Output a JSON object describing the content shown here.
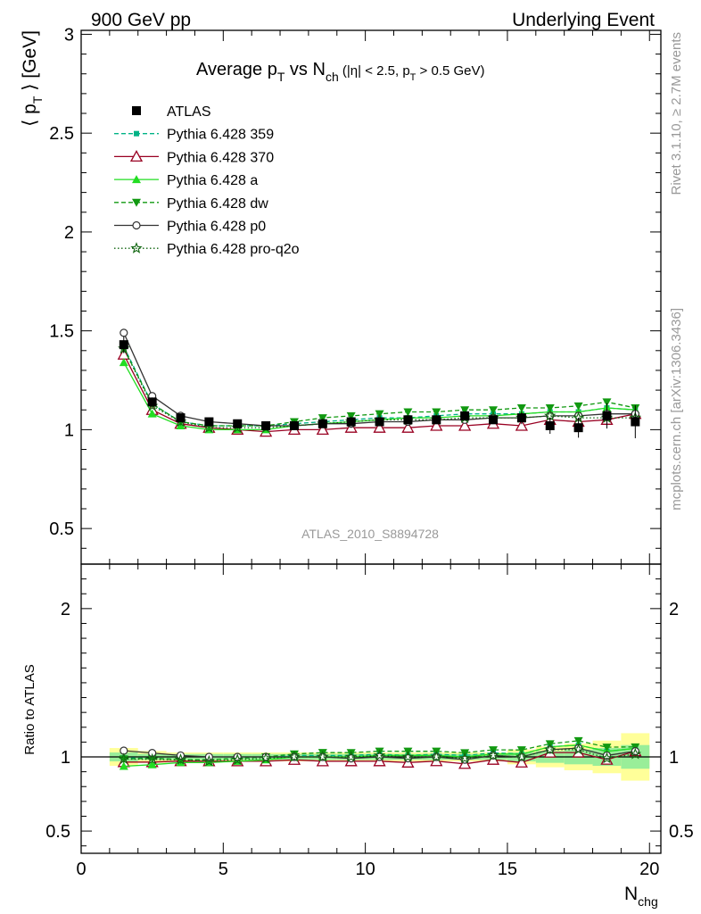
{
  "header": {
    "left": "900 GeV pp",
    "right": "Underlying Event"
  },
  "plot_title": {
    "main": "Average p",
    "main_sub": "T",
    "vs": " vs N",
    "vs_sub": "ch",
    "cuts_a": " (|η| < 2.5, p",
    "cuts_sub": "T",
    "cuts_b": " > 0.5 GeV)"
  },
  "analysis_id": "ATLAS_2010_S8894728",
  "side_labels": {
    "rivet": "Rivet 3.1.10, ≥ 2.7M events",
    "mcplots": "mcplots.cern.ch [arXiv:1306.3436]"
  },
  "axes": {
    "ylabel_main_a": "⟨ p",
    "ylabel_main_sub": "T",
    "ylabel_main_b": " ⟩ [GeV]",
    "ylabel_ratio": "Ratio to ATLAS",
    "xlabel": "N",
    "xlabel_sub": "chg",
    "main_yticks": [
      "0.5",
      "1",
      "1.5",
      "2",
      "2.5",
      "3"
    ],
    "ratio_yticks": [
      "0.5",
      "1",
      "2"
    ],
    "xticks": [
      "0",
      "5",
      "10",
      "15",
      "20"
    ]
  },
  "chart_data": {
    "type": "line",
    "xlim": [
      0,
      20.4
    ],
    "ylim_main": [
      0.32,
      3.02
    ],
    "ylim_ratio": [
      0.35,
      2.3
    ],
    "x": [
      1.5,
      2.5,
      3.5,
      4.5,
      5.5,
      6.5,
      7.5,
      8.5,
      9.5,
      10.5,
      11.5,
      12.5,
      13.5,
      14.5,
      15.5,
      16.5,
      17.5,
      18.5,
      19.5
    ],
    "data": {
      "name": "ATLAS",
      "values": [
        1.43,
        1.14,
        1.06,
        1.04,
        1.03,
        1.02,
        1.02,
        1.03,
        1.04,
        1.04,
        1.05,
        1.05,
        1.07,
        1.05,
        1.06,
        1.02,
        1.01,
        1.07,
        1.04
      ],
      "stat_band": [
        0.03,
        0.02,
        0.02,
        0.02,
        0.02,
        0.02,
        0.02,
        0.02,
        0.02,
        0.02,
        0.02,
        0.02,
        0.02,
        0.02,
        0.03,
        0.04,
        0.05,
        0.06,
        0.08
      ],
      "total_band": [
        0.06,
        0.04,
        0.03,
        0.03,
        0.03,
        0.03,
        0.03,
        0.03,
        0.03,
        0.03,
        0.03,
        0.03,
        0.03,
        0.03,
        0.05,
        0.07,
        0.09,
        0.11,
        0.16
      ]
    },
    "series": [
      {
        "name": "Pythia 6.428 359",
        "color": "#00b386",
        "dash": "5,3",
        "marker": "square-small",
        "values": [
          1.42,
          1.13,
          1.04,
          1.02,
          1.02,
          1.02,
          1.03,
          1.04,
          1.05,
          1.06,
          1.06,
          1.07,
          1.08,
          1.08,
          1.08,
          1.09,
          1.09,
          1.11,
          1.1
        ]
      },
      {
        "name": "Pythia 6.428 370",
        "color": "#990022",
        "dash": "",
        "marker": "triangle-open",
        "values": [
          1.38,
          1.1,
          1.03,
          1.01,
          1.0,
          0.99,
          1.0,
          1.0,
          1.01,
          1.01,
          1.01,
          1.02,
          1.02,
          1.03,
          1.02,
          1.05,
          1.04,
          1.05,
          1.08
        ]
      },
      {
        "name": "Pythia 6.428 a",
        "color": "#22dd22",
        "dash": "",
        "marker": "triangle",
        "values": [
          1.34,
          1.08,
          1.02,
          1.0,
          1.0,
          1.0,
          1.02,
          1.03,
          1.04,
          1.05,
          1.06,
          1.06,
          1.07,
          1.07,
          1.08,
          1.09,
          1.09,
          1.11,
          1.1
        ]
      },
      {
        "name": "Pythia 6.428 dw",
        "color": "#119911",
        "dash": "5,3",
        "marker": "triangle-down",
        "values": [
          1.41,
          1.13,
          1.04,
          1.02,
          1.02,
          1.02,
          1.04,
          1.06,
          1.07,
          1.08,
          1.09,
          1.09,
          1.1,
          1.1,
          1.11,
          1.11,
          1.12,
          1.14,
          1.11
        ]
      },
      {
        "name": "Pythia 6.428 p0",
        "color": "#333333",
        "dash": "",
        "marker": "circle-open",
        "values": [
          1.49,
          1.17,
          1.07,
          1.04,
          1.03,
          1.02,
          1.02,
          1.03,
          1.03,
          1.04,
          1.04,
          1.05,
          1.05,
          1.06,
          1.06,
          1.07,
          1.07,
          1.08,
          1.08
        ]
      },
      {
        "name": "Pythia 6.428 pro-q2o",
        "color": "#116611",
        "dash": "1.5,2.5",
        "marker": "star-open",
        "values": [
          1.41,
          1.12,
          1.04,
          1.01,
          1.01,
          1.01,
          1.02,
          1.03,
          1.04,
          1.05,
          1.05,
          1.05,
          1.06,
          1.06,
          1.06,
          1.07,
          1.06,
          1.06,
          1.06
        ]
      }
    ],
    "legend_placement": "top-left"
  }
}
